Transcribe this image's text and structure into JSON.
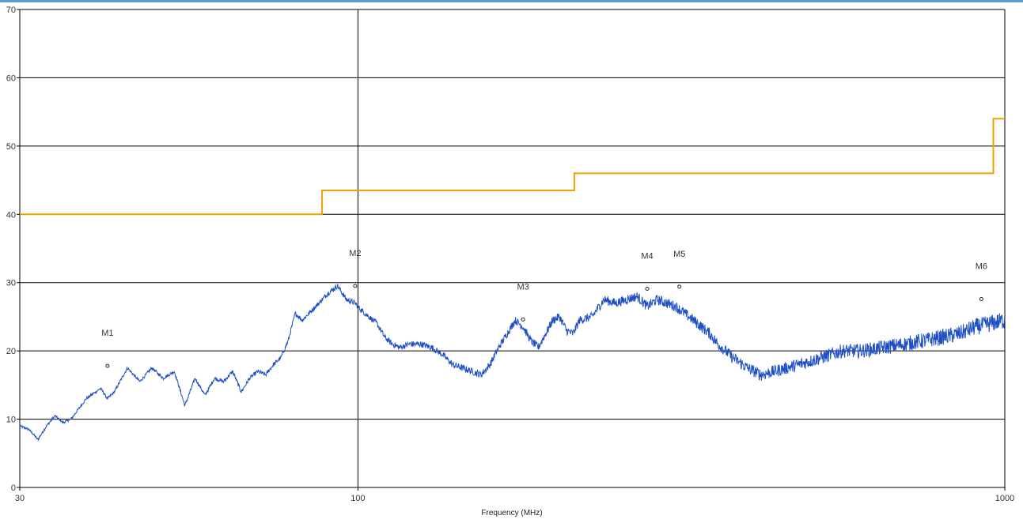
{
  "chart_data": {
    "type": "line",
    "xlabel": "Frequency (MHz)",
    "ylabel": "",
    "xscale": "log",
    "xlim": [
      30,
      1000
    ],
    "ylim": [
      0,
      70
    ],
    "x_ticks": [
      "30",
      "100",
      "1000"
    ],
    "y_ticks": [
      "0",
      "10",
      "20",
      "30",
      "40",
      "50",
      "60",
      "70"
    ],
    "grid": true,
    "colors": {
      "measurement": "#1f4fc4",
      "limit": "#f0a000",
      "grid": "#000000"
    },
    "series": [
      {
        "role": "limit",
        "x": [
          30,
          88,
          88,
          216,
          216,
          960,
          960,
          1000
        ],
        "y": [
          40,
          40,
          43.5,
          43.5,
          46,
          46,
          54,
          54
        ]
      },
      {
        "role": "measurement",
        "x": [
          30,
          31,
          32,
          33,
          34,
          35,
          36,
          38,
          40,
          41,
          42,
          44,
          46,
          48,
          50,
          52,
          54,
          56,
          58,
          60,
          62,
          64,
          66,
          68,
          70,
          72,
          74,
          76,
          78,
          80,
          82,
          85,
          88,
          90,
          93,
          96,
          99,
          101,
          104,
          107,
          110,
          113,
          116,
          120,
          125,
          130,
          135,
          140,
          145,
          150,
          155,
          160,
          165,
          170,
          175,
          180,
          185,
          190,
          195,
          200,
          205,
          210,
          215,
          220,
          230,
          240,
          250,
          260,
          270,
          280,
          290,
          300,
          310,
          320,
          330,
          340,
          350,
          360,
          380,
          400,
          420,
          440,
          460,
          480,
          500,
          520,
          540,
          560,
          600,
          650,
          700,
          750,
          800,
          850,
          900,
          950,
          1000
        ],
        "y": [
          9,
          8.5,
          7,
          9,
          10.5,
          9.5,
          10,
          13,
          14.5,
          13,
          14,
          17.5,
          15.5,
          17.5,
          16,
          17,
          12,
          16,
          13.5,
          16,
          15.5,
          17,
          14,
          16,
          17,
          16.5,
          18,
          19,
          21.5,
          25.5,
          24.5,
          26,
          27.5,
          28.5,
          29.5,
          27.5,
          27,
          26,
          25,
          24,
          22,
          21,
          20.5,
          21,
          21,
          20.5,
          19.5,
          18,
          17.5,
          17,
          16.5,
          18,
          20.5,
          22.5,
          24.5,
          23.5,
          21.5,
          20.5,
          22.5,
          24.5,
          25,
          23,
          22.5,
          24.5,
          25,
          27.5,
          27,
          27.5,
          28,
          26.5,
          27.5,
          27,
          26.5,
          25.5,
          24.5,
          23.5,
          22.5,
          21,
          19,
          17.5,
          16.5,
          17,
          17.5,
          18,
          18.5,
          19,
          19.5,
          20,
          20,
          20.5,
          21,
          21.5,
          22,
          22.5,
          23.5,
          24,
          24.5
        ]
      }
    ],
    "markers": [
      {
        "label": "M1",
        "x": 41,
        "y": 17.8
      },
      {
        "label": "M2",
        "x": 99,
        "y": 29.5
      },
      {
        "label": "M3",
        "x": 180,
        "y": 24.6
      },
      {
        "label": "M4",
        "x": 280,
        "y": 29.1
      },
      {
        "label": "M5",
        "x": 314,
        "y": 29.4
      },
      {
        "label": "M6",
        "x": 920,
        "y": 27.6
      }
    ]
  }
}
